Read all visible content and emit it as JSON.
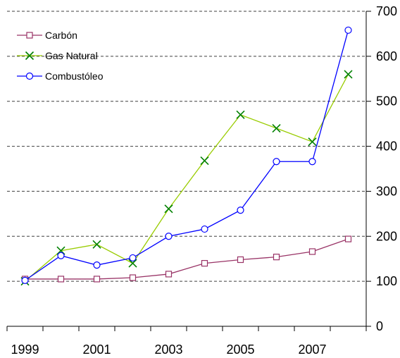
{
  "chart_data": {
    "type": "line",
    "title": "",
    "xlabel": "",
    "ylabel": "",
    "x": [
      1999,
      2000,
      2001,
      2002,
      2003,
      2004,
      2005,
      2006,
      2007,
      2008
    ],
    "x_tick_labels": [
      "1999",
      "2001",
      "2003",
      "2005",
      "2007"
    ],
    "y_tick_labels": [
      "0",
      "100",
      "200",
      "300",
      "400",
      "500",
      "600",
      "700"
    ],
    "ylim": [
      0,
      700
    ],
    "y_axis_side": "right",
    "grid": "horizontal dashed",
    "legend_position": "top-left",
    "series": [
      {
        "name": "Carbón",
        "color": "#993366",
        "marker": "square",
        "values": [
          105,
          105,
          105,
          108,
          116,
          140,
          148,
          154,
          166,
          194
        ]
      },
      {
        "name": "Gas Natural",
        "color": "#99CC00",
        "marker_color": "#008000",
        "marker": "x",
        "values": [
          100,
          168,
          182,
          140,
          261,
          368,
          470,
          440,
          410,
          560
        ]
      },
      {
        "name": "Combustóleo",
        "color": "#0000FF",
        "marker": "circle",
        "values": [
          102,
          157,
          136,
          152,
          200,
          216,
          258,
          366,
          366,
          658
        ]
      }
    ]
  }
}
